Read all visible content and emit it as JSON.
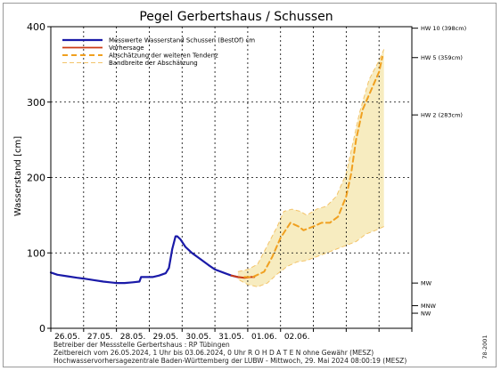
{
  "chart_data": {
    "type": "line",
    "title": "Pegel Gerbertshaus / Schussen",
    "ylabel": "Wasserstand [cm]",
    "xlabel": "",
    "ylim": [
      0,
      400
    ],
    "xlim": [
      0,
      11
    ],
    "y_ticks": [
      0,
      100,
      200,
      300,
      400
    ],
    "x_tick_labels": [
      "26.05.",
      "27.05.",
      "28.05.",
      "29.05.",
      "30.05.",
      "31.05.",
      "01.06.",
      "02.06."
    ],
    "grid": true,
    "legend_position": "top-left",
    "legend": [
      {
        "label": "Messwerte Wasserstand Schussen  (BestOf)  cm",
        "style": "measured"
      },
      {
        "label": "Vorhersage",
        "style": "forecast"
      },
      {
        "label": "Abschätzung der weiteren Tendenz",
        "style": "tendency"
      },
      {
        "label": "Bandbreite der Abschätzung",
        "style": "band"
      }
    ],
    "reference_levels": [
      {
        "label": "HW 10 (398cm)",
        "value": 398
      },
      {
        "label": "HW 5 (359cm)",
        "value": 359
      },
      {
        "label": "HW 2 (283cm)",
        "value": 283
      },
      {
        "label": "MW",
        "value": 60
      },
      {
        "label": "MNW",
        "value": 30
      },
      {
        "label": "NW",
        "value": 20
      }
    ],
    "series": [
      {
        "name": "Messwerte Wasserstand Schussen  (BestOf)  cm",
        "color": "#1a1aa8",
        "points": [
          [
            0.0,
            74
          ],
          [
            0.2,
            71
          ],
          [
            0.5,
            69
          ],
          [
            0.8,
            67
          ],
          [
            1.0,
            66
          ],
          [
            1.3,
            64
          ],
          [
            1.6,
            62
          ],
          [
            1.8,
            61
          ],
          [
            2.0,
            60
          ],
          [
            2.25,
            60
          ],
          [
            2.5,
            61
          ],
          [
            2.7,
            62
          ],
          [
            2.75,
            68
          ],
          [
            3.1,
            68
          ],
          [
            3.3,
            70
          ],
          [
            3.5,
            73
          ],
          [
            3.6,
            80
          ],
          [
            3.7,
            105
          ],
          [
            3.8,
            122
          ],
          [
            3.85,
            122
          ],
          [
            3.95,
            118
          ],
          [
            4.1,
            108
          ],
          [
            4.3,
            100
          ],
          [
            4.55,
            92
          ],
          [
            4.8,
            84
          ],
          [
            5.0,
            78
          ],
          [
            5.25,
            74
          ],
          [
            5.5,
            70
          ],
          [
            5.7,
            68
          ]
        ]
      },
      {
        "name": "Vorhersage",
        "color": "#cc3a14",
        "points": [
          [
            5.5,
            70
          ],
          [
            5.7,
            68
          ],
          [
            5.9,
            67
          ],
          [
            6.1,
            68
          ],
          [
            6.2,
            68
          ]
        ]
      },
      {
        "name": "Abschätzung der weiteren Tendenz",
        "color": "#f0a020",
        "points": [
          [
            5.9,
            68
          ],
          [
            6.15,
            68
          ],
          [
            6.5,
            75
          ],
          [
            6.75,
            95
          ],
          [
            7.0,
            120
          ],
          [
            7.3,
            140
          ],
          [
            7.55,
            135
          ],
          [
            7.7,
            130
          ],
          [
            8.0,
            135
          ],
          [
            8.25,
            140
          ],
          [
            8.5,
            140
          ],
          [
            8.75,
            148
          ],
          [
            9.0,
            175
          ],
          [
            9.15,
            205
          ],
          [
            9.3,
            250
          ],
          [
            9.5,
            290
          ],
          [
            9.75,
            315
          ],
          [
            10.0,
            340
          ],
          [
            10.1,
            360
          ]
        ]
      }
    ],
    "band": {
      "name": "Bandbreite der Abschätzung",
      "color": "#f7ecc0",
      "upper": [
        [
          5.7,
          75
        ],
        [
          6.0,
          78
        ],
        [
          6.3,
          85
        ],
        [
          6.6,
          110
        ],
        [
          6.9,
          135
        ],
        [
          7.1,
          155
        ],
        [
          7.35,
          158
        ],
        [
          7.6,
          155
        ],
        [
          7.8,
          150
        ],
        [
          8.1,
          158
        ],
        [
          8.4,
          162
        ],
        [
          8.7,
          175
        ],
        [
          9.0,
          205
        ],
        [
          9.2,
          245
        ],
        [
          9.4,
          285
        ],
        [
          9.7,
          330
        ],
        [
          10.0,
          355
        ],
        [
          10.15,
          370
        ]
      ],
      "lower": [
        [
          10.15,
          135
        ],
        [
          9.9,
          130
        ],
        [
          9.6,
          125
        ],
        [
          9.3,
          115
        ],
        [
          9.0,
          110
        ],
        [
          8.7,
          105
        ],
        [
          8.4,
          100
        ],
        [
          8.1,
          95
        ],
        [
          7.8,
          90
        ],
        [
          7.5,
          88
        ],
        [
          7.2,
          82
        ],
        [
          6.9,
          72
        ],
        [
          6.6,
          60
        ],
        [
          6.3,
          55
        ],
        [
          6.0,
          58
        ],
        [
          5.7,
          65
        ]
      ]
    }
  },
  "footer": {
    "line1": "Betreiber der Messstelle Gerbertshaus : RP Tübingen",
    "line2": "Zeitbereich vom 26.05.2024, 1 Uhr bis 03.06.2024, 0 Uhr    R O H D A T E N  ohne Gewähr (MESZ)",
    "line3": "Hochwasservorhersagezentrale Baden-Württemberg der LUBW - Mittwoch, 29. Mai 2024 08:00:19 (MESZ)",
    "code": "78-2001"
  }
}
